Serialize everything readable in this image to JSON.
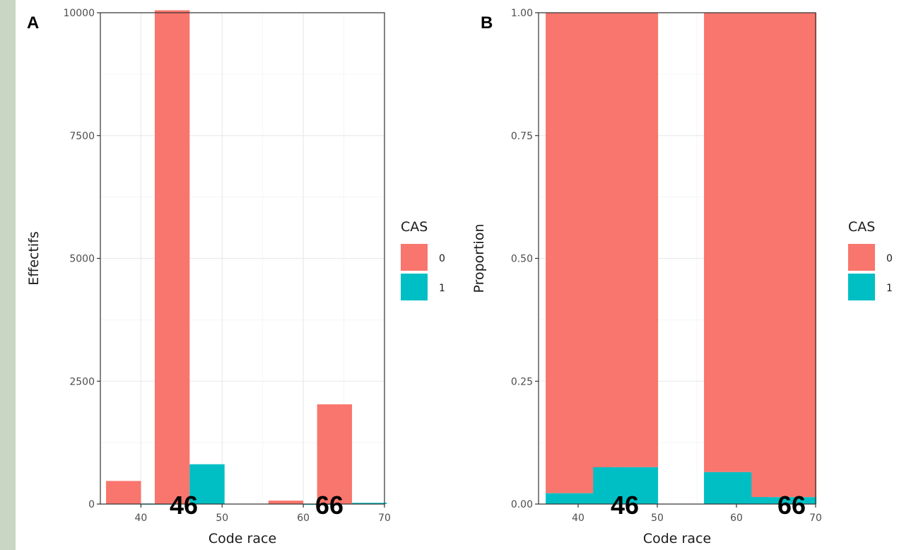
{
  "colors": {
    "cas0": "#f8766d",
    "cas1": "#00bfc4",
    "grid": "#ebebeb",
    "border": "#333333"
  },
  "chart_data": [
    {
      "type": "bar",
      "panel_tag": "A",
      "xlabel": "Code race",
      "ylabel": "Effectifs",
      "xlim": [
        35,
        70
      ],
      "ylim": [
        0,
        10000
      ],
      "x_ticks": [
        40,
        50,
        60,
        70
      ],
      "y_ticks": [
        0,
        2500,
        5000,
        7500,
        10000
      ],
      "y_tick_labels": [
        "0",
        "2500",
        "5000",
        "7500",
        "10000"
      ],
      "x_tick_labels": [
        "40",
        "50",
        "60",
        "70"
      ],
      "position": "dodge",
      "categories": [
        40,
        46,
        60,
        66
      ],
      "series": [
        {
          "name": "0",
          "values": [
            470,
            10050,
            70,
            2030
          ]
        },
        {
          "name": "1",
          "values": [
            10,
            810,
            5,
            25
          ]
        }
      ],
      "legend": {
        "title": "CAS",
        "entries": [
          "0",
          "1"
        ],
        "placement": "right"
      },
      "annotations": [
        "46",
        "66"
      ],
      "grid": true
    },
    {
      "type": "bar",
      "panel_tag": "B",
      "xlabel": "Code race",
      "ylabel": "Proportion",
      "xlim": [
        35,
        70
      ],
      "ylim": [
        0,
        1
      ],
      "x_ticks": [
        40,
        50,
        60,
        70
      ],
      "y_ticks": [
        0,
        0.25,
        0.5,
        0.75,
        1
      ],
      "y_tick_labels": [
        "0.00",
        "0.25",
        "0.50",
        "0.75",
        "1.00"
      ],
      "x_tick_labels": [
        "40",
        "50",
        "60",
        "70"
      ],
      "position": "fill",
      "categories": [
        40,
        46,
        60,
        66
      ],
      "series": [
        {
          "name": "0",
          "values": [
            0.978,
            0.925,
            0.935,
            0.986
          ]
        },
        {
          "name": "1",
          "values": [
            0.022,
            0.075,
            0.065,
            0.014
          ]
        }
      ],
      "legend": {
        "title": "CAS",
        "entries": [
          "0",
          "1"
        ],
        "placement": "right"
      },
      "annotations": [
        "46",
        "66"
      ],
      "grid": true
    }
  ]
}
